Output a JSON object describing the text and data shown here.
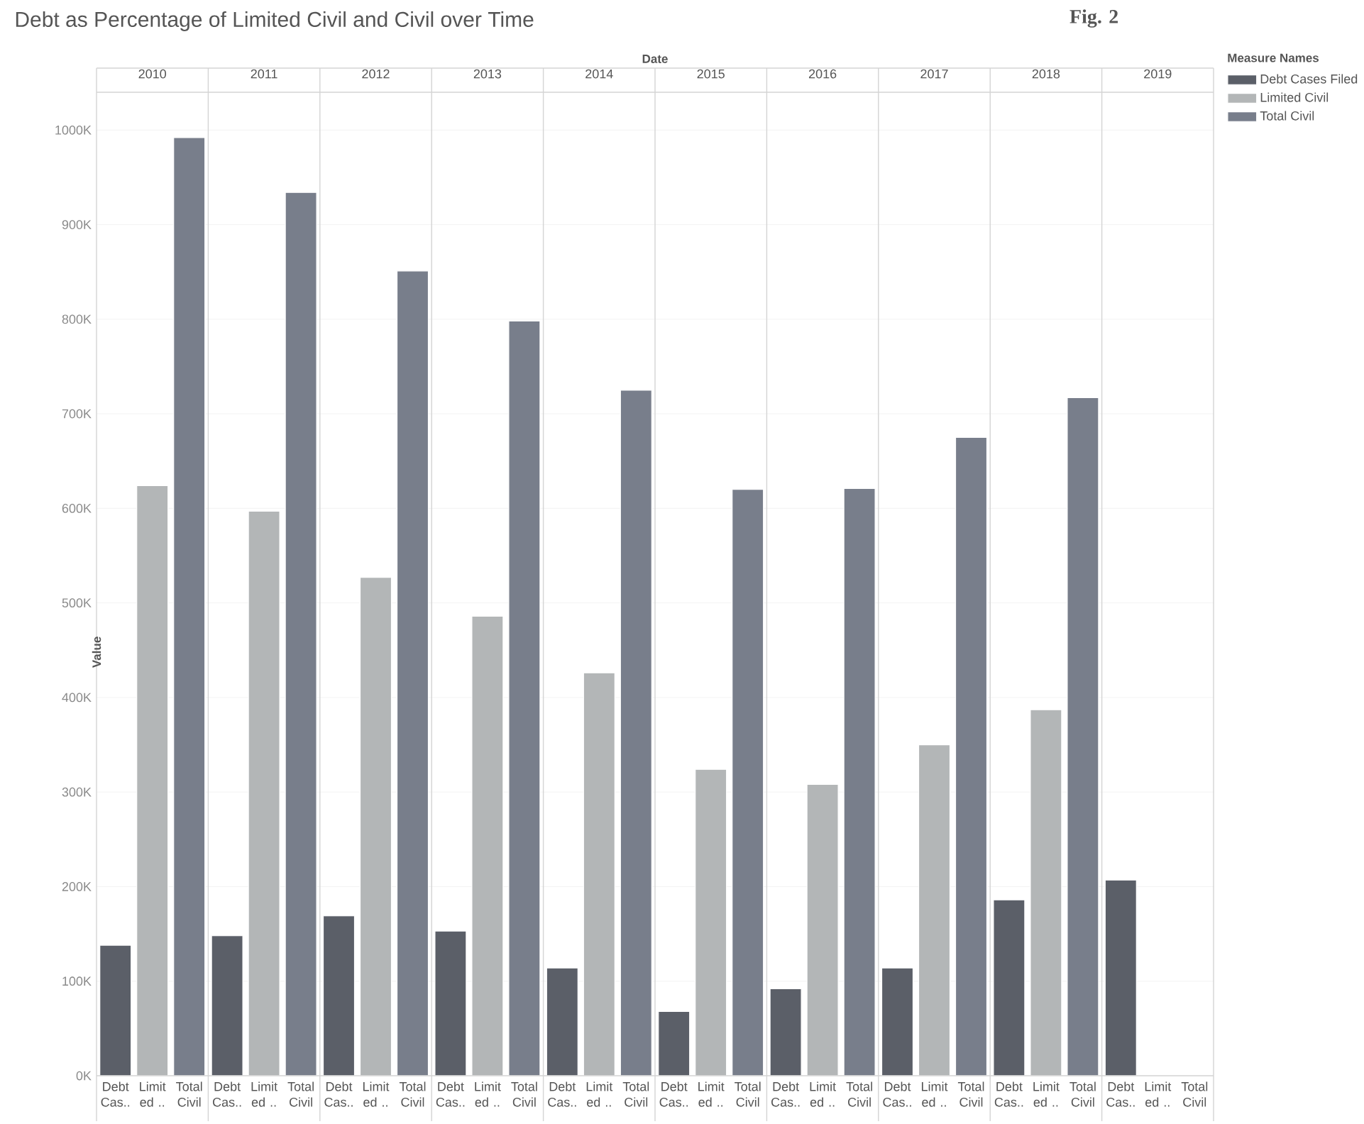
{
  "chart_data": {
    "type": "bar",
    "title": "Debt as Percentage of Limited Civil and Civil over Time",
    "xlabel": "Date",
    "ylabel": "Value",
    "legend_title": "Measure Names",
    "legend": "right",
    "grid": "y",
    "categories": [
      "2010",
      "2011",
      "2012",
      "2013",
      "2014",
      "2015",
      "2016",
      "2017",
      "2018",
      "2019"
    ],
    "series": [
      {
        "name": "Debt Cases Filed",
        "color": "#5b5f68",
        "values": [
          138000,
          148000,
          169000,
          153000,
          114000,
          68000,
          92000,
          114000,
          186000,
          207000
        ]
      },
      {
        "name": "Limited Civil",
        "color": "#b3b6b7",
        "values": [
          624000,
          597000,
          527000,
          486000,
          426000,
          324000,
          308000,
          350000,
          387000,
          null
        ]
      },
      {
        "name": "Total Civil",
        "color": "#787e8b",
        "values": [
          992000,
          934000,
          851000,
          798000,
          725000,
          620000,
          621000,
          675000,
          717000,
          null
        ]
      }
    ],
    "ylim": [
      0,
      1040000
    ],
    "yticks": [
      {
        "value": 0,
        "label": "0K"
      },
      {
        "value": 100000,
        "label": "100K"
      },
      {
        "value": 200000,
        "label": "200K"
      },
      {
        "value": 300000,
        "label": "300K"
      },
      {
        "value": 400000,
        "label": "400K"
      },
      {
        "value": 500000,
        "label": "500K"
      },
      {
        "value": 600000,
        "label": "600K"
      },
      {
        "value": 700000,
        "label": "700K"
      },
      {
        "value": 800000,
        "label": "800K"
      },
      {
        "value": 900000,
        "label": "900K"
      },
      {
        "value": 1000000,
        "label": "1000K"
      }
    ],
    "annotations": [
      "Fig. 2",
      "Debt Cas..",
      "Limit ed ..",
      "Total Civil",
      "Debt Cas..",
      "Limit ed ..",
      "Total Civil",
      "Debt Cas..",
      "Limit ed ..",
      "Total Civil",
      "Debt Cas..",
      "Limit ed ..",
      "Total Civil",
      "Debt Cas..",
      "Limit ed ..",
      "Total Civil",
      "Debt Cas..",
      "Limit ed ..",
      "Total Civil",
      "Debt Cas..",
      "Limit ed ..",
      "Total Civil",
      "Debt Cas..",
      "Limit ed ..",
      "Total Civil",
      "Debt Cas..",
      "Limit ed ..",
      "Total Civil",
      "Debt Cas..",
      "Limit ed ..",
      "Total Civil"
    ]
  }
}
